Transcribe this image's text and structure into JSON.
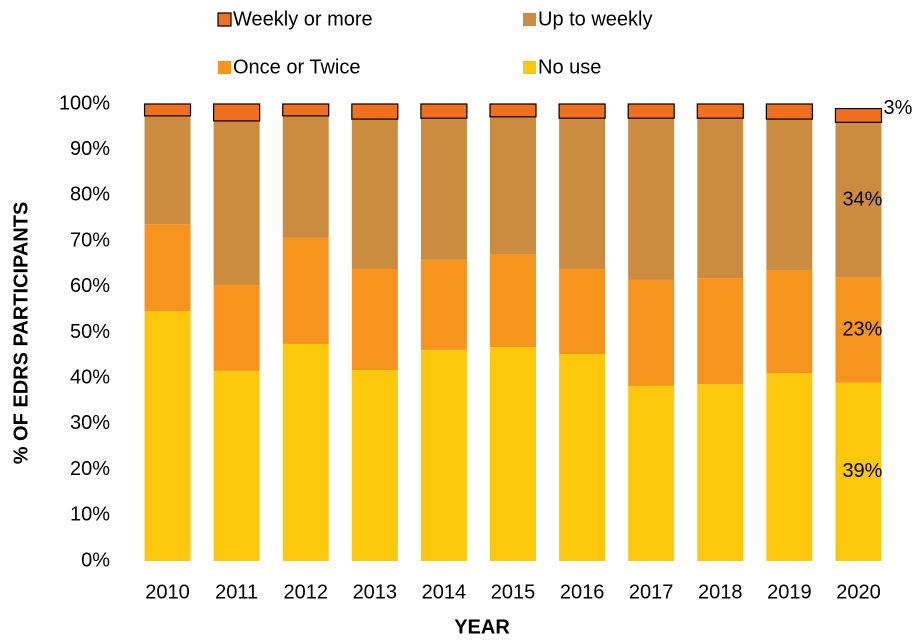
{
  "chart_data": {
    "type": "stacked_bar",
    "y_label": "% OF EDRS PARTICIPANTS",
    "x_label": "YEAR",
    "categories": [
      "2010",
      "2011",
      "2012",
      "2013",
      "2014",
      "2015",
      "2016",
      "2017",
      "2018",
      "2019",
      "2020"
    ],
    "series": [
      {
        "name": "No use",
        "color": "#fdc70c",
        "values": [
          54.7,
          41.6,
          47.5,
          41.8,
          46.2,
          46.8,
          45.3,
          38.3,
          38.7,
          41.1,
          39
        ],
        "value_labels": [
          null,
          null,
          null,
          null,
          null,
          null,
          null,
          null,
          null,
          null,
          "39%"
        ]
      },
      {
        "name": "Once or Twice",
        "color": "#f7941e",
        "values": [
          19,
          18.8,
          23.2,
          22.1,
          19.7,
          20.2,
          18.6,
          23.2,
          23.2,
          22.4,
          23
        ],
        "value_labels": [
          null,
          null,
          null,
          null,
          null,
          null,
          null,
          null,
          null,
          null,
          "23%"
        ]
      },
      {
        "name": "Up to weekly",
        "color": "#cc8c40",
        "values": [
          23.7,
          35.9,
          26.7,
          32.8,
          31,
          30.2,
          33,
          35.4,
          35,
          33.2,
          34
        ],
        "value_labels": [
          null,
          null,
          null,
          null,
          null,
          null,
          null,
          null,
          null,
          null,
          "34%"
        ]
      },
      {
        "name": "Weekly or more",
        "color": "#f0701f",
        "values": [
          2.6,
          3.7,
          2.6,
          3.3,
          3.1,
          2.8,
          3.1,
          3.1,
          3.1,
          3.3,
          3
        ],
        "value_labels": [
          null,
          null,
          null,
          null,
          null,
          null,
          null,
          null,
          null,
          null,
          "3%"
        ]
      }
    ],
    "legend_order": [
      3,
      2,
      1,
      0
    ],
    "legend_position": "top",
    "ylim": [
      0,
      100
    ],
    "yticks": [
      {
        "value": 0,
        "label": "0%"
      },
      {
        "value": 10,
        "label": "10%"
      },
      {
        "value": 20,
        "label": "20%"
      },
      {
        "value": 30,
        "label": "30%"
      },
      {
        "value": 40,
        "label": "40%"
      },
      {
        "value": 50,
        "label": "50%"
      },
      {
        "value": 60,
        "label": "60%"
      },
      {
        "value": 70,
        "label": "70%"
      },
      {
        "value": 80,
        "label": "80%"
      },
      {
        "value": 90,
        "label": "90%"
      },
      {
        "value": 100,
        "label": "100%"
      }
    ],
    "grid": false
  }
}
